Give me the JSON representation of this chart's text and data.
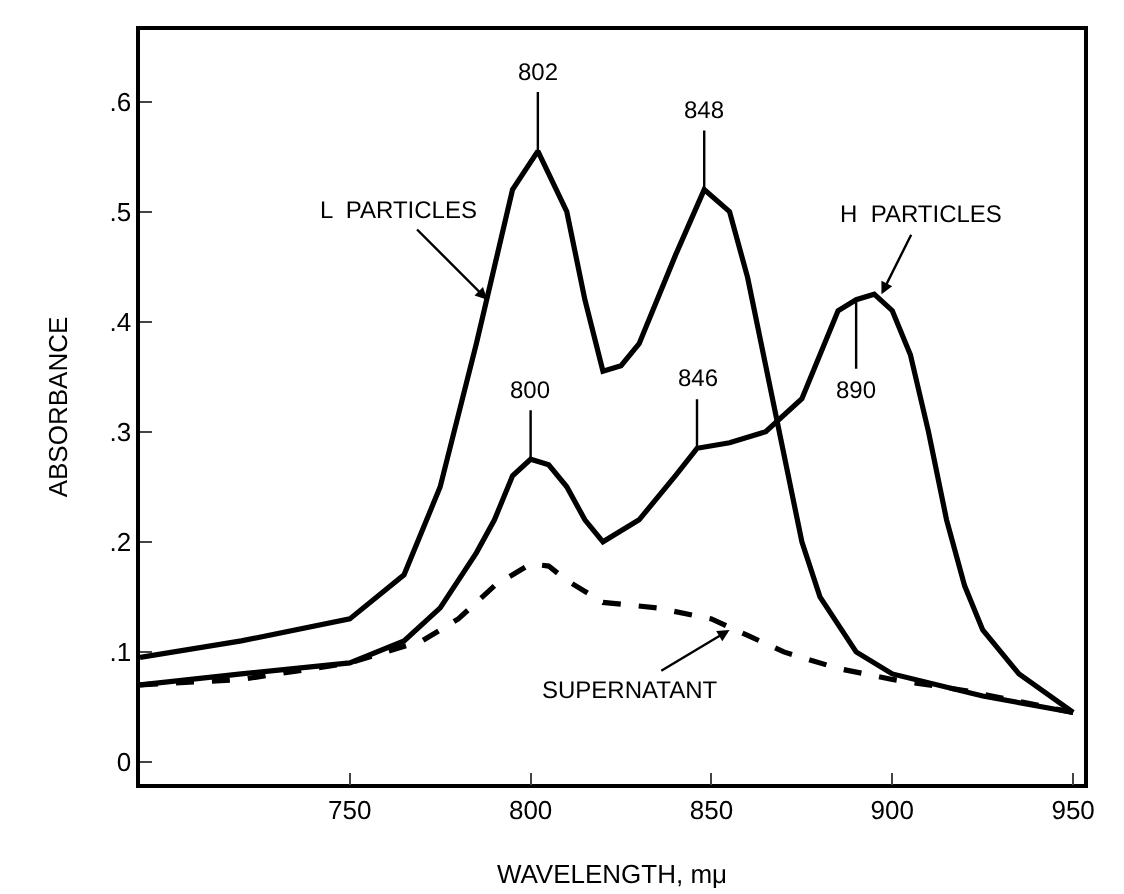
{
  "chart_data": {
    "type": "line",
    "xlabel": "WAVELENGTH, mμ",
    "ylabel": "ABSORBANCE",
    "xlim": [
      692,
      953
    ],
    "xticks": [
      750,
      800,
      850,
      900,
      950
    ],
    "ylim": [
      -0.02,
      0.665
    ],
    "yticks": [
      {
        "value": 0,
        "label": "0"
      },
      {
        "value": 0.1,
        "label": ".1"
      },
      {
        "value": 0.2,
        "label": ".2"
      },
      {
        "value": 0.3,
        "label": ".3"
      },
      {
        "value": 0.4,
        "label": ".4"
      },
      {
        "value": 0.5,
        "label": ".5"
      },
      {
        "value": 0.6,
        "label": ".6"
      }
    ],
    "grid": false,
    "marker": "none",
    "series": [
      {
        "color": "#000000",
        "line_style": "solid",
        "x": [
          692,
          720,
          750,
          765,
          775,
          785,
          790,
          795,
          802,
          810,
          815,
          820,
          825,
          830,
          840,
          848,
          855,
          860,
          865,
          870,
          875,
          880,
          890,
          900,
          925,
          950
        ],
        "values": [
          0.095,
          0.11,
          0.13,
          0.17,
          0.25,
          0.38,
          0.45,
          0.52,
          0.555,
          0.5,
          0.42,
          0.355,
          0.36,
          0.38,
          0.46,
          0.52,
          0.5,
          0.44,
          0.36,
          0.28,
          0.2,
          0.15,
          0.1,
          0.08,
          0.06,
          0.045
        ]
      },
      {
        "color": "#000000",
        "line_style": "solid",
        "x": [
          692,
          720,
          750,
          765,
          775,
          785,
          790,
          795,
          800,
          805,
          810,
          815,
          820,
          830,
          840,
          846,
          855,
          865,
          875,
          880,
          885,
          890,
          895,
          900,
          905,
          910,
          915,
          920,
          925,
          935,
          950
        ],
        "values": [
          0.07,
          0.08,
          0.09,
          0.11,
          0.14,
          0.19,
          0.22,
          0.26,
          0.275,
          0.27,
          0.25,
          0.22,
          0.2,
          0.22,
          0.26,
          0.285,
          0.29,
          0.3,
          0.33,
          0.37,
          0.41,
          0.42,
          0.425,
          0.41,
          0.37,
          0.3,
          0.22,
          0.16,
          0.12,
          0.08,
          0.045
        ]
      },
      {
        "color": "#000000",
        "line_style": "dashed",
        "x": [
          692,
          720,
          750,
          770,
          780,
          790,
          800,
          805,
          810,
          820,
          835,
          850,
          860,
          870,
          885,
          900,
          920,
          950
        ],
        "values": [
          0.07,
          0.075,
          0.09,
          0.11,
          0.13,
          0.16,
          0.18,
          0.178,
          0.165,
          0.145,
          0.14,
          0.13,
          0.115,
          0.1,
          0.085,
          0.075,
          0.065,
          0.045
        ]
      }
    ],
    "annotations": [
      {
        "text": "802",
        "x": 802,
        "y": 0.555
      },
      {
        "text": "848",
        "x": 848,
        "y": 0.52
      },
      {
        "text": "800",
        "x": 800,
        "y": 0.275
      },
      {
        "text": "846",
        "x": 846,
        "y": 0.285
      },
      {
        "text": "890",
        "x": 890,
        "y": 0.42
      },
      {
        "text": "L  PARTICLES",
        "x": 788,
        "y": 0.42
      },
      {
        "text": "H  PARTICLES",
        "x": 897,
        "y": 0.425
      },
      {
        "text": "SUPERNATANT",
        "x": 855,
        "y": 0.12
      }
    ]
  }
}
